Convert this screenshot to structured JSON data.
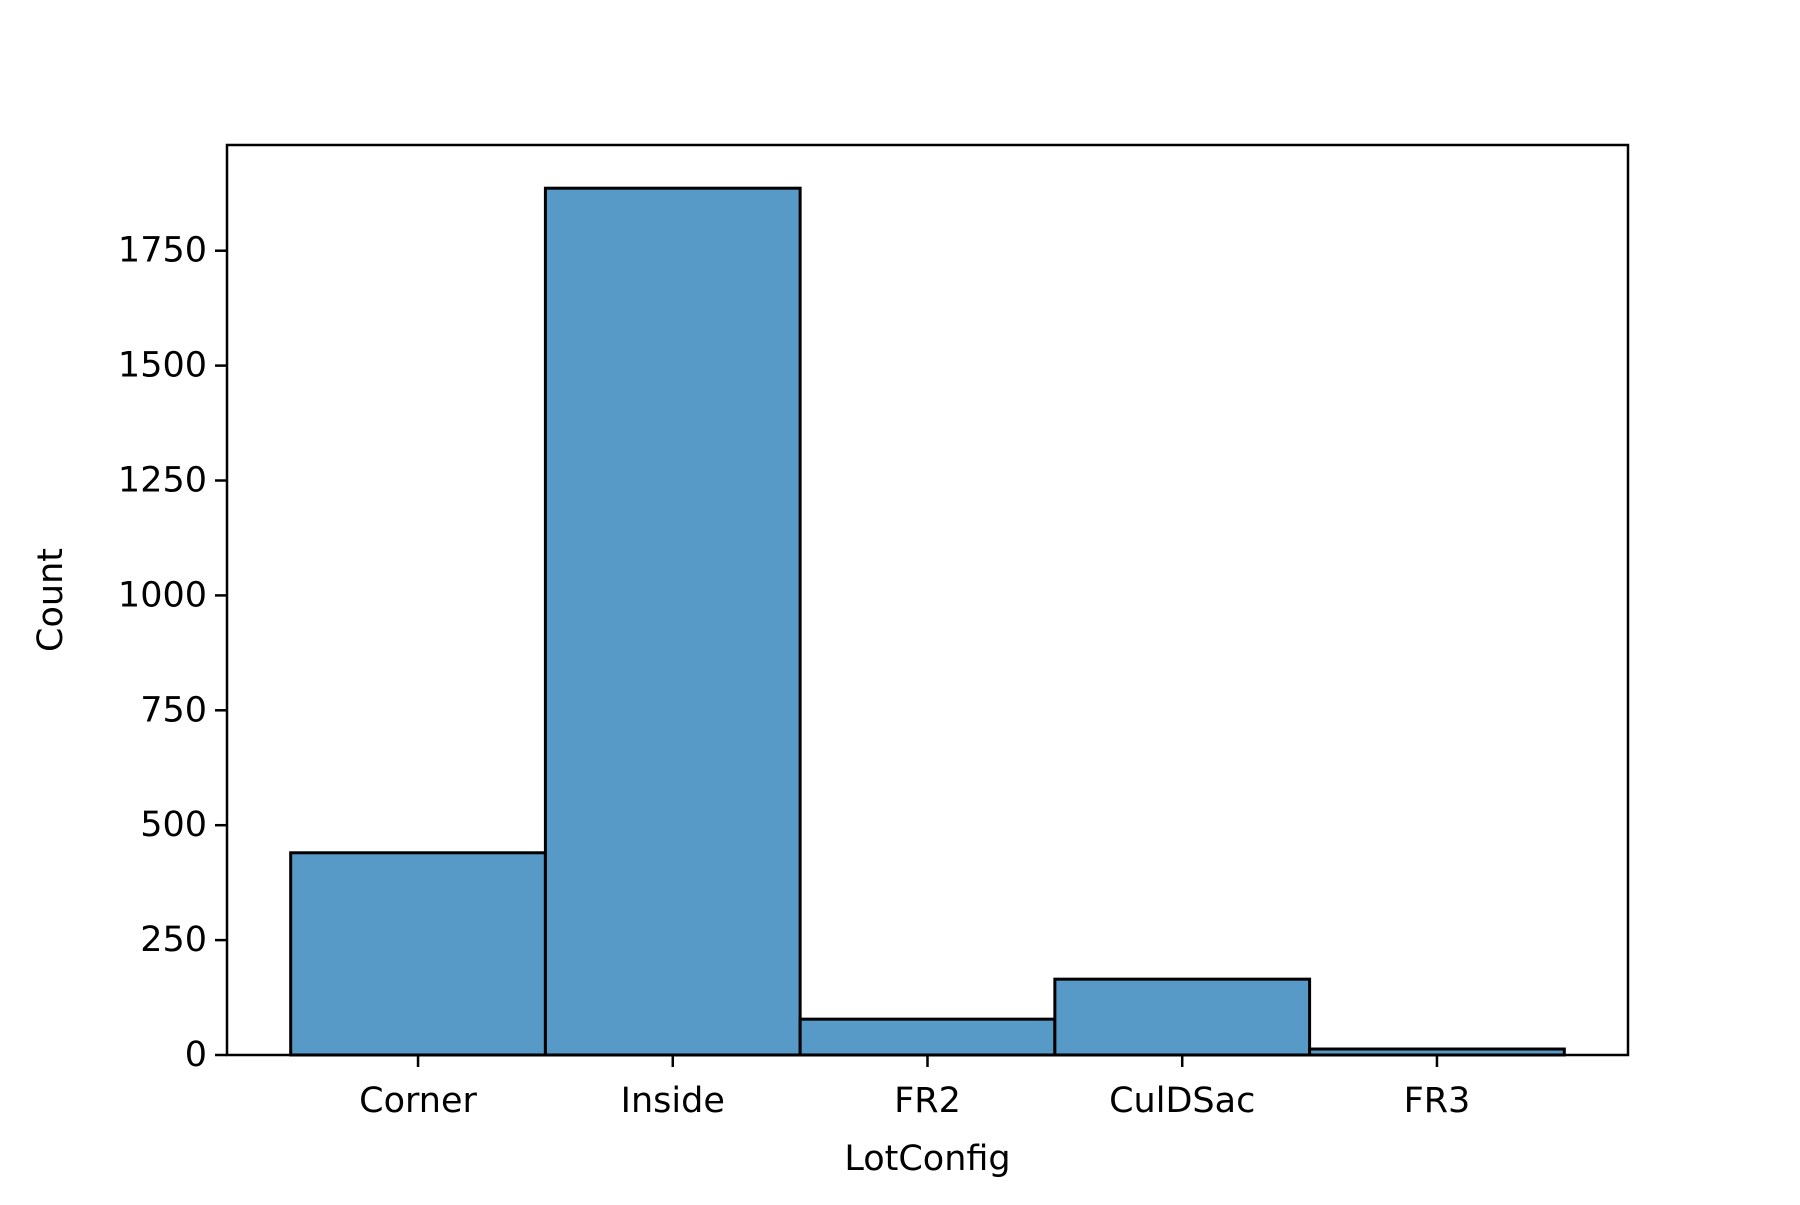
{
  "chart_data": {
    "type": "bar",
    "title": "",
    "xlabel": "LotConfig",
    "ylabel": "Count",
    "categories": [
      "Corner",
      "Inside",
      "FR2",
      "CulDSac",
      "FR3"
    ],
    "values": [
      440,
      1886,
      78,
      165,
      13
    ],
    "ylim": [
      0,
      1980
    ],
    "yticks": [
      0,
      250,
      500,
      750,
      1000,
      1250,
      1500,
      1750
    ],
    "grid": false,
    "legend": "none",
    "colors": {
      "bar_fill": "#5799c7",
      "bar_edge": "#000000",
      "axes": "#000000"
    }
  }
}
